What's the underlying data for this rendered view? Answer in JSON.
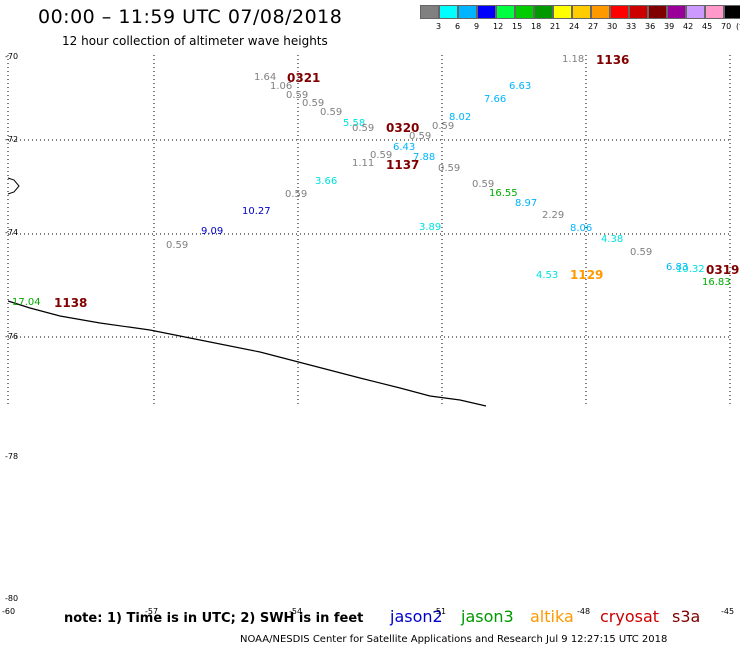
{
  "title": "00:00 – 11:59 UTC 07/08/2018",
  "subtitle": "12 hour collection of altimeter wave heights",
  "legend": {
    "colors": [
      "#808080",
      "#00ffff",
      "#00b4ff",
      "#0000ff",
      "#00ff40",
      "#00cc00",
      "#009900",
      "#ffff00",
      "#ffcc00",
      "#ff9900",
      "#ff0000",
      "#cc0000",
      "#800000",
      "#990099",
      "#cc99ff",
      "#ff99cc",
      "#000000"
    ],
    "ticks": [
      "3",
      "6",
      "9",
      "12",
      "15",
      "18",
      "21",
      "24",
      "27",
      "30",
      "33",
      "36",
      "39",
      "42",
      "45",
      "70",
      "(ft)"
    ]
  },
  "lat_labels": [
    "-70",
    "-72",
    "-74",
    "-76",
    "-78",
    "-80"
  ],
  "lon_labels": [
    "-60",
    "-57",
    "-54",
    "-51",
    "-48",
    "-45"
  ],
  "pass_labels": [
    {
      "text": "0321",
      "color": "#800000"
    },
    {
      "text": "1136",
      "color": "#800000"
    },
    {
      "text": "0320",
      "color": "#800000"
    },
    {
      "text": "1137",
      "color": "#800000"
    },
    {
      "text": "1138",
      "color": "#800000"
    },
    {
      "text": "1129",
      "color": "#ff9900"
    },
    {
      "text": "0319",
      "color": "#800000"
    }
  ],
  "wave_heights": [
    {
      "text": "1.64",
      "color": "#808080"
    },
    {
      "text": "1.06",
      "color": "#808080"
    },
    {
      "text": "0.59",
      "color": "#808080"
    },
    {
      "text": "0.59",
      "color": "#808080"
    },
    {
      "text": "0.59",
      "color": "#808080"
    },
    {
      "text": "5.58",
      "color": "#00e0e0"
    },
    {
      "text": "0.59",
      "color": "#808080"
    },
    {
      "text": "0.59",
      "color": "#808080"
    },
    {
      "text": "0.59",
      "color": "#808080"
    },
    {
      "text": "6.43",
      "color": "#00b4ff"
    },
    {
      "text": "7.88",
      "color": "#00b4ff"
    },
    {
      "text": "0.59",
      "color": "#808080"
    },
    {
      "text": "1.11",
      "color": "#808080"
    },
    {
      "text": "0.59",
      "color": "#808080"
    },
    {
      "text": "8.02",
      "color": "#00b4ff"
    },
    {
      "text": "7.66",
      "color": "#00b4ff"
    },
    {
      "text": "6.63",
      "color": "#00b4ff"
    },
    {
      "text": "1.18",
      "color": "#808080"
    },
    {
      "text": "3.66",
      "color": "#00e0e0"
    },
    {
      "text": "0.59",
      "color": "#808080"
    },
    {
      "text": "10.27",
      "color": "#0000cc"
    },
    {
      "text": "9.09",
      "color": "#0000cc"
    },
    {
      "text": "0.59",
      "color": "#808080"
    },
    {
      "text": "0.59",
      "color": "#808080"
    },
    {
      "text": "16.55",
      "color": "#00aa00"
    },
    {
      "text": "8.97",
      "color": "#00b4ff"
    },
    {
      "text": "2.29",
      "color": "#808080"
    },
    {
      "text": "3.89",
      "color": "#00e0e0"
    },
    {
      "text": "8.06",
      "color": "#00b4ff"
    },
    {
      "text": "4.38",
      "color": "#00e0e0"
    },
    {
      "text": "0.59",
      "color": "#808080"
    },
    {
      "text": "6.83",
      "color": "#00b4ff"
    },
    {
      "text": "10.32",
      "color": "#00e0e0"
    },
    {
      "text": "16.83",
      "color": "#00aa00"
    },
    {
      "text": "4.53",
      "color": "#00e0e0"
    },
    {
      "text": "17.04",
      "color": "#00aa00"
    }
  ],
  "footer": {
    "note": "note: 1) Time is in UTC; 2) SWH is in feet",
    "satellites": [
      {
        "name": "jason2",
        "color": "#0000cc"
      },
      {
        "name": "jason3",
        "color": "#009900"
      },
      {
        "name": "altika",
        "color": "#ff9900"
      },
      {
        "name": "cryosat",
        "color": "#cc0000"
      },
      {
        "name": "s3a",
        "color": "#800000"
      }
    ],
    "credit": "NOAA/NESDIS Center for Satellite Applications and Research    Jul  9 12:27:15 UTC 2018"
  }
}
